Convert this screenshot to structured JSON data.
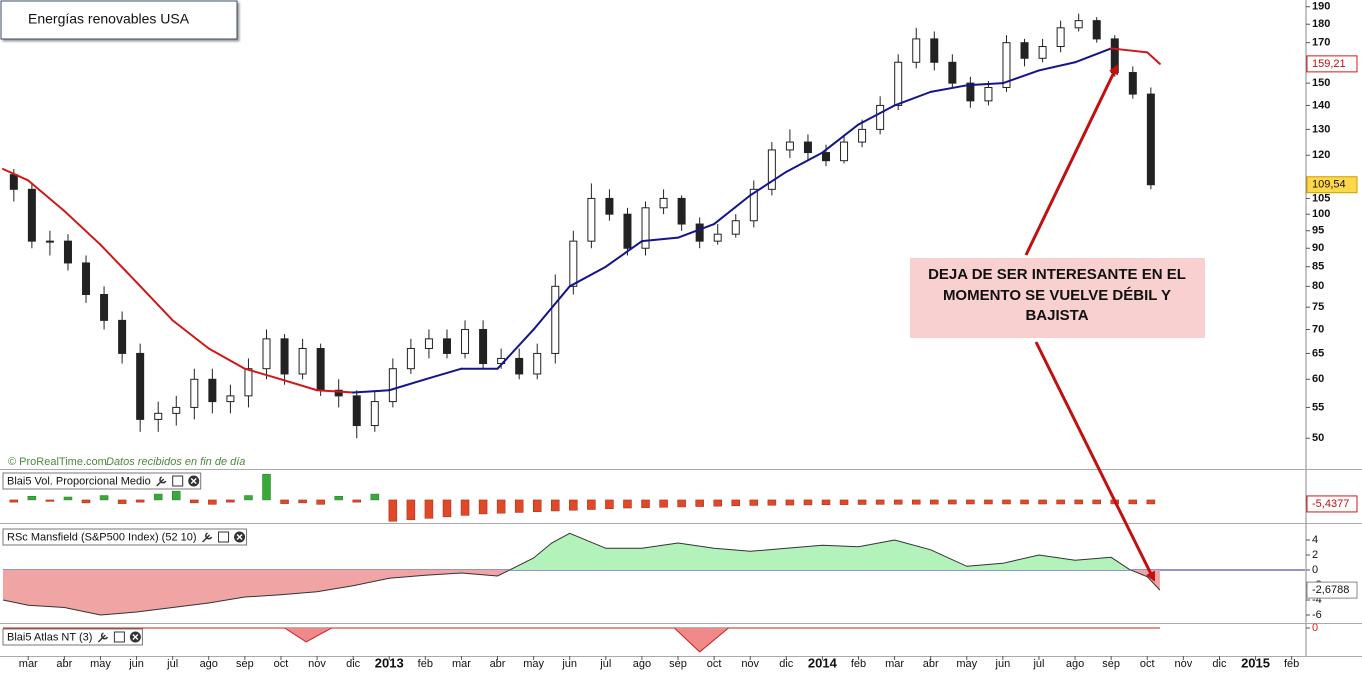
{
  "chart_data": [
    {
      "type": "candlestick",
      "title": "Energías renovables USA",
      "source": "© ProRealTime.com",
      "source_note": "Datos recibidos en fin de día",
      "annotation": [
        "DEJA DE SER INTERESANTE EN EL",
        "MOMENTO SE VUELVE DÉBIL Y",
        "BAJISTA"
      ],
      "x": [
        1.6,
        2.1,
        2.6,
        3.1,
        3.6,
        4.1,
        4.6,
        5.1,
        5.6,
        6.1,
        6.6,
        7.1,
        7.6,
        8.1,
        8.6,
        9.1,
        9.6,
        10.1,
        10.6,
        11.1,
        11.6,
        12.1,
        12.6,
        13.1,
        13.6,
        14.1,
        14.6,
        15.1,
        15.6,
        16.1,
        16.6,
        17.1,
        17.6,
        18.1,
        18.6,
        19.1,
        19.6,
        20.1,
        20.6,
        21.1,
        21.6,
        22.1,
        22.6,
        23.1,
        23.6,
        24.1,
        24.6,
        25.1,
        25.6,
        26.1,
        26.6,
        27.1,
        27.6,
        28.1,
        28.6,
        29.1,
        29.6,
        30.1,
        30.6,
        31.1,
        31.6,
        32.1,
        32.6,
        33.1
      ],
      "open": [
        113,
        108,
        92,
        92,
        86,
        78,
        72,
        65,
        53,
        54,
        55,
        60,
        56,
        57,
        62,
        68,
        61,
        66,
        58,
        57,
        52,
        56,
        62,
        66,
        68,
        65,
        70,
        63,
        64,
        61,
        65,
        80,
        92,
        105,
        100,
        90,
        102,
        105,
        97,
        92,
        94,
        98,
        108,
        122,
        125,
        121,
        118,
        125,
        130,
        140,
        160,
        172,
        160,
        150,
        142,
        148,
        170,
        162,
        168,
        178,
        182,
        172,
        155,
        145
      ],
      "high": [
        115,
        110,
        95,
        94,
        88,
        80,
        74,
        67,
        56,
        57,
        62,
        62,
        59,
        64,
        70,
        69,
        68,
        67,
        60,
        58,
        58,
        64,
        68,
        70,
        70,
        72,
        72,
        66,
        66,
        67,
        83,
        95,
        110,
        108,
        102,
        104,
        108,
        106,
        99,
        97,
        100,
        111,
        125,
        130,
        128,
        124,
        128,
        134,
        144,
        164,
        178,
        176,
        164,
        153,
        151,
        174,
        172,
        172,
        182,
        186,
        184,
        174,
        158,
        148
      ],
      "low": [
        104,
        90,
        88,
        84,
        76,
        70,
        63,
        51,
        51,
        52,
        53,
        54,
        54,
        55,
        60,
        59,
        60,
        57,
        55,
        50,
        51,
        55,
        61,
        64,
        64,
        64,
        62,
        62,
        60,
        60,
        63,
        78,
        90,
        98,
        88,
        88,
        100,
        95,
        90,
        91,
        93,
        96,
        106,
        119,
        118,
        116,
        117,
        123,
        128,
        138,
        157,
        156,
        148,
        139,
        140,
        146,
        158,
        160,
        165,
        176,
        170,
        153,
        143,
        108
      ],
      "close": [
        108,
        92,
        92,
        86,
        78,
        72,
        65,
        53,
        54,
        55,
        60,
        56,
        57,
        62,
        68,
        61,
        66,
        58,
        57,
        52,
        56,
        62,
        66,
        68,
        65,
        70,
        63,
        64,
        61,
        65,
        80,
        92,
        105,
        100,
        90,
        102,
        105,
        97,
        92,
        94,
        98,
        108,
        122,
        125,
        121,
        118,
        125,
        130,
        140,
        160,
        172,
        160,
        150,
        142,
        148,
        170,
        162,
        168,
        178,
        182,
        172,
        155,
        145,
        109.54
      ],
      "up_color": "#ffffff",
      "down_color": "#222222",
      "ma": {
        "x": [
          1.3,
          2,
          3,
          4,
          5,
          6,
          7,
          8,
          9,
          10,
          11,
          12,
          13,
          14,
          15,
          16,
          17,
          18,
          19,
          20,
          21,
          22,
          23,
          24,
          25,
          26,
          27,
          28,
          29,
          30,
          31,
          32,
          33,
          33.35
        ],
        "values": [
          115,
          111,
          101,
          91,
          81,
          72,
          66,
          62,
          60,
          58,
          57.6,
          58,
          60,
          62,
          62,
          70,
          80,
          85,
          92,
          93,
          97,
          106,
          114,
          121,
          132,
          140,
          146,
          149,
          150,
          156,
          160,
          167,
          165,
          159.21
        ],
        "up_color": "#14148c",
        "down_color": "#d01818"
      },
      "price_labels": [
        {
          "value": 159.21,
          "label": "159,21"
        },
        {
          "value": 109.54,
          "label": "109,54"
        }
      ],
      "log_scale": true,
      "ylim": [
        45.6,
        194
      ],
      "yticks": [
        50,
        55,
        60,
        65,
        70,
        75,
        80,
        85,
        90,
        95,
        100,
        105,
        120,
        130,
        140,
        150,
        170,
        180,
        190
      ],
      "xlim": [
        1.3,
        37.37
      ],
      "xticks": [
        {
          "value": 2,
          "label": "mar"
        },
        {
          "value": 3,
          "label": "abr"
        },
        {
          "value": 4,
          "label": "may"
        },
        {
          "value": 5,
          "label": "jun"
        },
        {
          "value": 6,
          "label": "jul"
        },
        {
          "value": 7,
          "label": "ago"
        },
        {
          "value": 8,
          "label": "sep"
        },
        {
          "value": 9,
          "label": "oct"
        },
        {
          "value": 10,
          "label": "nov"
        },
        {
          "value": 11,
          "label": "dic"
        },
        {
          "value": 12,
          "label": "2013"
        },
        {
          "value": 13,
          "label": "feb"
        },
        {
          "value": 14,
          "label": "mar"
        },
        {
          "value": 15,
          "label": "abr"
        },
        {
          "value": 16,
          "label": "may"
        },
        {
          "value": 17,
          "label": "jun"
        },
        {
          "value": 18,
          "label": "jul"
        },
        {
          "value": 19,
          "label": "ago"
        },
        {
          "value": 20,
          "label": "sep"
        },
        {
          "value": 21,
          "label": "oct"
        },
        {
          "value": 22,
          "label": "nov"
        },
        {
          "value": 23,
          "label": "dic"
        },
        {
          "value": 24,
          "label": "2014"
        },
        {
          "value": 25,
          "label": "feb"
        },
        {
          "value": 26,
          "label": "mar"
        },
        {
          "value": 27,
          "label": "abr"
        },
        {
          "value": 28,
          "label": "may"
        },
        {
          "value": 29,
          "label": "jun"
        },
        {
          "value": 30,
          "label": "jul"
        },
        {
          "value": 31,
          "label": "ago"
        },
        {
          "value": 32,
          "label": "sep"
        },
        {
          "value": 33,
          "label": "oct"
        },
        {
          "value": 34,
          "label": "nov"
        },
        {
          "value": 35,
          "label": "dic"
        },
        {
          "value": 36,
          "label": "2015"
        },
        {
          "value": 37,
          "label": "feb"
        }
      ]
    },
    {
      "type": "bar",
      "title": "Blai5 Vol. Proporcional Medio",
      "values": [
        -3,
        5,
        -2,
        4,
        -4,
        6,
        -5,
        -3,
        8,
        12,
        -4,
        -6,
        -3,
        6,
        35,
        -5,
        -4,
        -6,
        5,
        -3,
        8,
        -29,
        -27,
        -25,
        -23,
        -21,
        -19,
        -18,
        -17,
        -16,
        -15,
        -14,
        -13,
        -12,
        -11,
        -10.5,
        -10,
        -9.5,
        -9,
        -8.5,
        -8,
        -7.5,
        -7.2,
        -7,
        -6.8,
        -6.6,
        -6.4,
        -6.2,
        -6,
        -5.9,
        -5.8,
        -5.7,
        -5.6,
        -5.5,
        -5.5,
        -5.5,
        -5.5,
        -5.5,
        -5.5,
        -5.5,
        -5.4,
        -5.4,
        -5.4,
        -5.4377
      ],
      "pos_color": "#3aa83a",
      "neg_color": "#e04828",
      "ylim": [
        -30,
        38
      ],
      "yticks": [
        0
      ],
      "last_label": {
        "value": -5.4377,
        "label": "-5,4377"
      }
    },
    {
      "type": "area",
      "title": "RSc Mansfield (S&P500 Index) (52 10)",
      "x": [
        1.3,
        2,
        3,
        4,
        5,
        6,
        7,
        8,
        9,
        10,
        11,
        12,
        13,
        14,
        15,
        16,
        16.5,
        17,
        18,
        19,
        20,
        21,
        22,
        23,
        24,
        25,
        26,
        27,
        28,
        29,
        30,
        31,
        32,
        32.5,
        33,
        33.35
      ],
      "values": [
        -4,
        -4.7,
        -5,
        -6,
        -5.6,
        -5,
        -4.4,
        -3.6,
        -3.3,
        -2.9,
        -2.1,
        -1.1,
        -0.7,
        -0.4,
        -0.8,
        1.6,
        3.6,
        4.9,
        2.9,
        2.9,
        3.6,
        2.9,
        2.5,
        2.9,
        3.3,
        3.1,
        4,
        2.7,
        0.5,
        0.9,
        2,
        1.3,
        1.7,
        0.1,
        -0.9,
        -2.6788
      ],
      "pos_color": "#b4f2bc",
      "neg_color": "#f0a4a4",
      "line_color": "#333333",
      "zero_color": "#2a2aa0",
      "ylim": [
        -6.93,
        5.6
      ],
      "yticks": [
        4,
        2,
        0,
        -2,
        -4,
        -6
      ],
      "last_label": {
        "value": -2.6788,
        "label": "-2,6788"
      }
    },
    {
      "type": "area",
      "title": "Blai5 Atlas NT (3)",
      "x": [
        1.3,
        9.1,
        9.7,
        10.4,
        19.9,
        20.6,
        21.4,
        33.35
      ],
      "values": [
        0,
        0,
        -1.8,
        0,
        0,
        -3.1,
        0,
        0
      ],
      "neg_color": "#f08a8a",
      "line_color": "#cc2020",
      "tick_color": "#e02020",
      "ylim": [
        -3.5,
        0
      ],
      "yticks": [
        0
      ]
    }
  ]
}
